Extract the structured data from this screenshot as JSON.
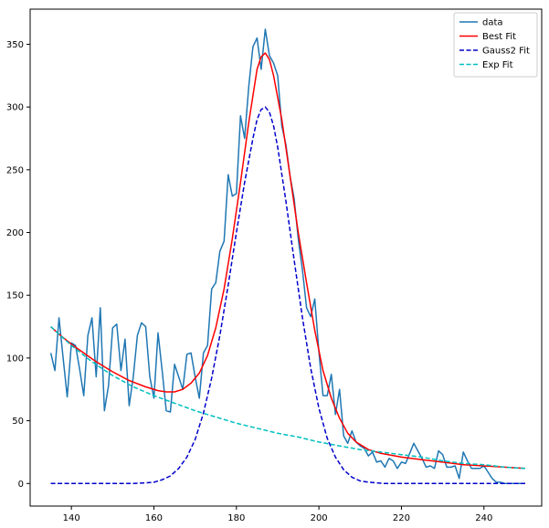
{
  "chart_data": {
    "type": "line",
    "title": "",
    "xlabel": "",
    "ylabel": "",
    "xlim": [
      130,
      254
    ],
    "ylim": [
      -18,
      378
    ],
    "xticks": [
      140,
      160,
      180,
      200,
      220,
      240
    ],
    "yticks": [
      0,
      50,
      100,
      150,
      200,
      250,
      300,
      350
    ],
    "grid": false,
    "legend_position": "top-right",
    "series": [
      {
        "name": "data",
        "style": "solid",
        "color": "#1f77b4",
        "x": [
          135,
          136,
          137,
          138,
          139,
          140,
          141,
          142,
          143,
          144,
          145,
          146,
          147,
          148,
          149,
          150,
          151,
          152,
          153,
          154,
          155,
          156,
          157,
          158,
          159,
          160,
          161,
          162,
          163,
          164,
          165,
          166,
          167,
          168,
          169,
          170,
          171,
          172,
          173,
          174,
          175,
          176,
          177,
          178,
          179,
          180,
          181,
          182,
          183,
          184,
          185,
          186,
          187,
          188,
          189,
          190,
          191,
          192,
          193,
          194,
          195,
          196,
          197,
          198,
          199,
          200,
          201,
          202,
          203,
          204,
          205,
          206,
          207,
          208,
          209,
          210,
          211,
          212,
          213,
          214,
          215,
          216,
          217,
          218,
          219,
          220,
          221,
          222,
          223,
          224,
          225,
          226,
          227,
          228,
          229,
          230,
          231,
          232,
          233,
          234,
          235,
          236,
          237,
          238,
          239,
          240,
          241,
          242,
          243,
          244,
          245,
          246,
          247,
          248,
          249,
          250
        ],
        "y": [
          104,
          90,
          132,
          100,
          69,
          112,
          110,
          91,
          70,
          118,
          132,
          85,
          140,
          58,
          78,
          124,
          127,
          90,
          115,
          62,
          85,
          118,
          128,
          125,
          85,
          68,
          120,
          90,
          58,
          57,
          95,
          85,
          75,
          103,
          104,
          85,
          68,
          104,
          110,
          155,
          160,
          185,
          193,
          246,
          229,
          231,
          293,
          275,
          317,
          348,
          355,
          330,
          362,
          341,
          335,
          325,
          285,
          270,
          245,
          227,
          195,
          170,
          140,
          133,
          147,
          105,
          70,
          70,
          87,
          55,
          75,
          38,
          32,
          42,
          33,
          30,
          28,
          22,
          25,
          17,
          18,
          13,
          20,
          18,
          12,
          17,
          16,
          24,
          32,
          26,
          20,
          13,
          14,
          12,
          26,
          23,
          13,
          13,
          14,
          4,
          25,
          18,
          12,
          12,
          12,
          14,
          9,
          4,
          1,
          1,
          0,
          0,
          0,
          0,
          0,
          0
        ]
      },
      {
        "name": "Best Fit",
        "style": "solid",
        "color": "#ff0000",
        "x": [
          135,
          137,
          140,
          143,
          146,
          150,
          154,
          158,
          161,
          163,
          165,
          167,
          169,
          171,
          173,
          175,
          177,
          179,
          181,
          183,
          185,
          186,
          187,
          188,
          189,
          191,
          193,
          195,
          197,
          199,
          201,
          203,
          205,
          207,
          209,
          212,
          215,
          220,
          225,
          230,
          235,
          240,
          245,
          250
        ],
        "y": [
          125,
          119,
          111,
          104,
          97,
          89,
          82,
          77,
          74,
          73,
          73,
          75,
          80,
          88,
          102,
          124,
          155,
          195,
          240,
          288,
          330,
          340,
          343,
          338,
          325,
          290,
          245,
          200,
          160,
          122,
          90,
          68,
          52,
          40,
          33,
          27,
          24,
          21,
          19,
          17,
          15,
          14,
          13,
          12
        ]
      },
      {
        "name": "Gauss2 Fit",
        "style": "dashed",
        "color": "#0000cc",
        "x": [
          135,
          140,
          150,
          155,
          158,
          160,
          162,
          164,
          166,
          168,
          170,
          172,
          174,
          176,
          178,
          180,
          182,
          184,
          185,
          186,
          187,
          188,
          189,
          190,
          192,
          194,
          196,
          198,
          200,
          202,
          204,
          206,
          208,
          210,
          212,
          214,
          216,
          220,
          230,
          240,
          250
        ],
        "y": [
          0,
          0,
          0,
          0,
          0.5,
          1,
          3,
          6,
          12,
          21,
          35,
          56,
          84,
          118,
          158,
          200,
          240,
          275,
          290,
          298,
          300,
          296,
          285,
          268,
          225,
          178,
          132,
          92,
          60,
          36,
          21,
          11,
          5,
          2,
          1,
          0.5,
          0,
          0,
          0,
          0,
          0
        ]
      },
      {
        "name": "Exp Fit",
        "style": "dashed",
        "color": "#00bfbf",
        "x": [
          135,
          140,
          145,
          150,
          155,
          160,
          165,
          170,
          175,
          180,
          185,
          190,
          195,
          200,
          205,
          210,
          215,
          220,
          225,
          230,
          235,
          240,
          245,
          250
        ],
        "y": [
          125,
          110,
          97,
          86,
          77,
          70,
          64,
          58,
          53,
          48,
          44,
          40,
          37,
          33,
          30,
          27,
          25,
          23,
          21,
          18,
          16,
          15,
          13,
          12
        ]
      }
    ]
  }
}
